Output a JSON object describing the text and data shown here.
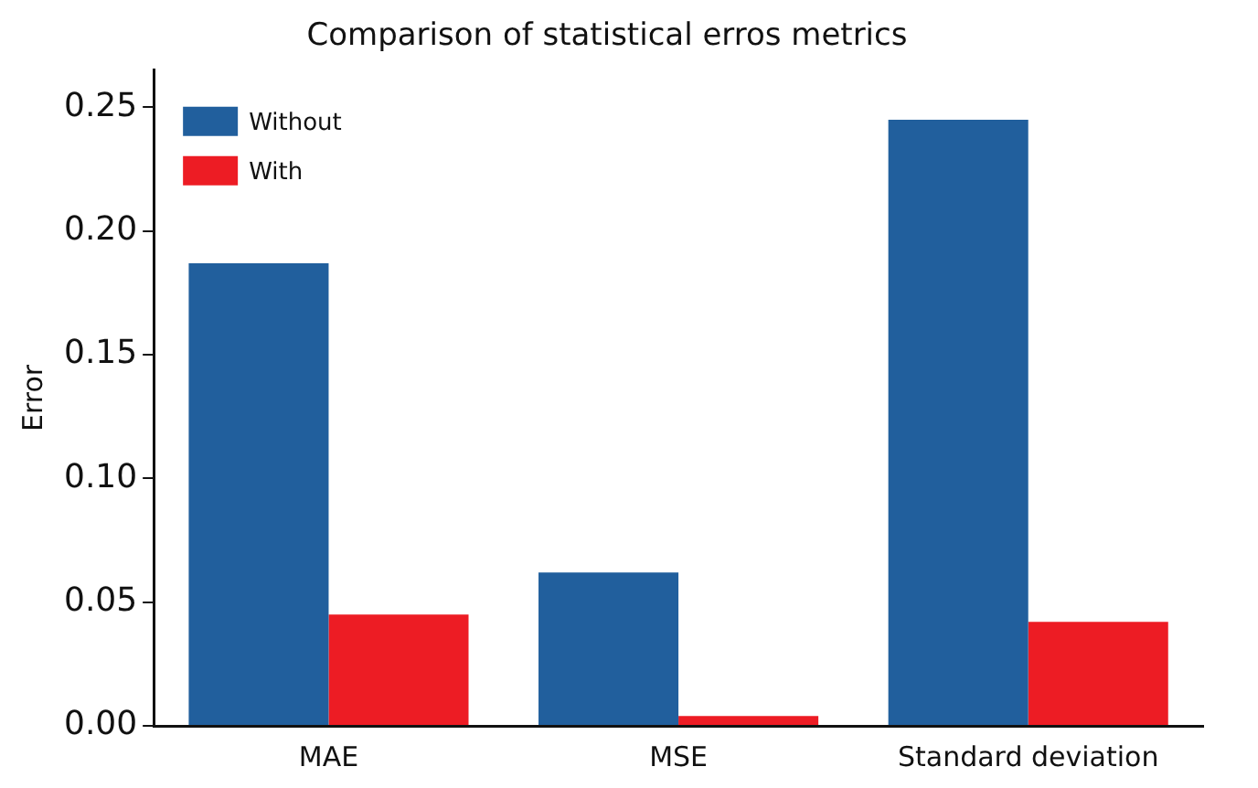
{
  "chart_data": {
    "type": "bar",
    "title": "Comparison of statistical erros metrics",
    "ylabel": "Error",
    "categories": [
      "MAE",
      "MSE",
      "Standard deviation"
    ],
    "series": [
      {
        "name": "Without",
        "color": "#215f9d",
        "values": [
          0.187,
          0.062,
          0.245
        ]
      },
      {
        "name": "With",
        "color": "#ed1c24",
        "values": [
          0.045,
          0.004,
          0.042
        ]
      }
    ],
    "ylim": [
      0,
      0.265
    ],
    "yticks": [
      {
        "value": 0,
        "label": "0.00"
      },
      {
        "value": 0.05,
        "label": "0.05"
      },
      {
        "value": 0.1,
        "label": "0.10"
      },
      {
        "value": 0.15,
        "label": "0.15"
      },
      {
        "value": 0.2,
        "label": "0.20"
      },
      {
        "value": 0.25,
        "label": "0.25"
      }
    ],
    "grid": false,
    "legend": "top left"
  }
}
